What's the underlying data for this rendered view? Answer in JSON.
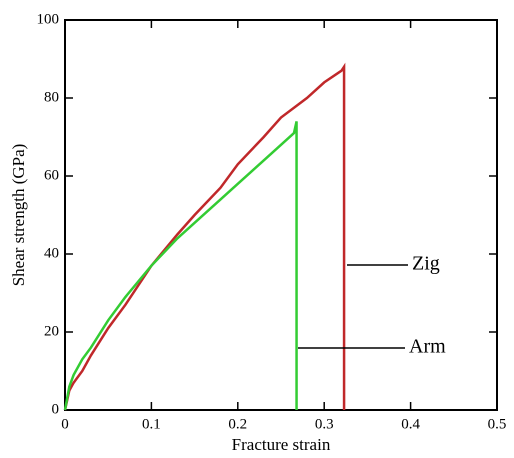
{
  "chart_data": {
    "type": "line",
    "x_label": "Fracture strain",
    "y_label": "Shear strength (GPa)",
    "xlim": [
      0,
      0.5
    ],
    "xticks": [
      0,
      0.1,
      0.2,
      0.3,
      0.4,
      0.5
    ],
    "ylim": [
      0,
      100
    ],
    "yticks": [
      0,
      20,
      40,
      60,
      80,
      100
    ],
    "series": [
      {
        "name": "Zig",
        "color": "#c0282a",
        "x": [
          0,
          0.005,
          0.01,
          0.02,
          0.03,
          0.05,
          0.07,
          0.1,
          0.13,
          0.15,
          0.18,
          0.2,
          0.23,
          0.25,
          0.28,
          0.3,
          0.32,
          0.323,
          0.323
        ],
        "values": [
          0,
          5,
          7,
          10,
          14,
          21,
          27,
          37,
          45,
          50,
          57,
          63,
          70,
          75,
          80,
          84,
          87,
          88,
          0
        ]
      },
      {
        "name": "Arm",
        "color": "#33cc33",
        "x": [
          0,
          0.005,
          0.01,
          0.02,
          0.03,
          0.05,
          0.07,
          0.1,
          0.13,
          0.15,
          0.18,
          0.2,
          0.23,
          0.25,
          0.265,
          0.268,
          0.268
        ],
        "values": [
          0,
          6,
          9,
          13,
          16,
          23,
          29,
          37,
          44,
          48,
          54,
          58,
          64,
          68,
          71,
          74,
          0
        ]
      }
    ]
  }
}
